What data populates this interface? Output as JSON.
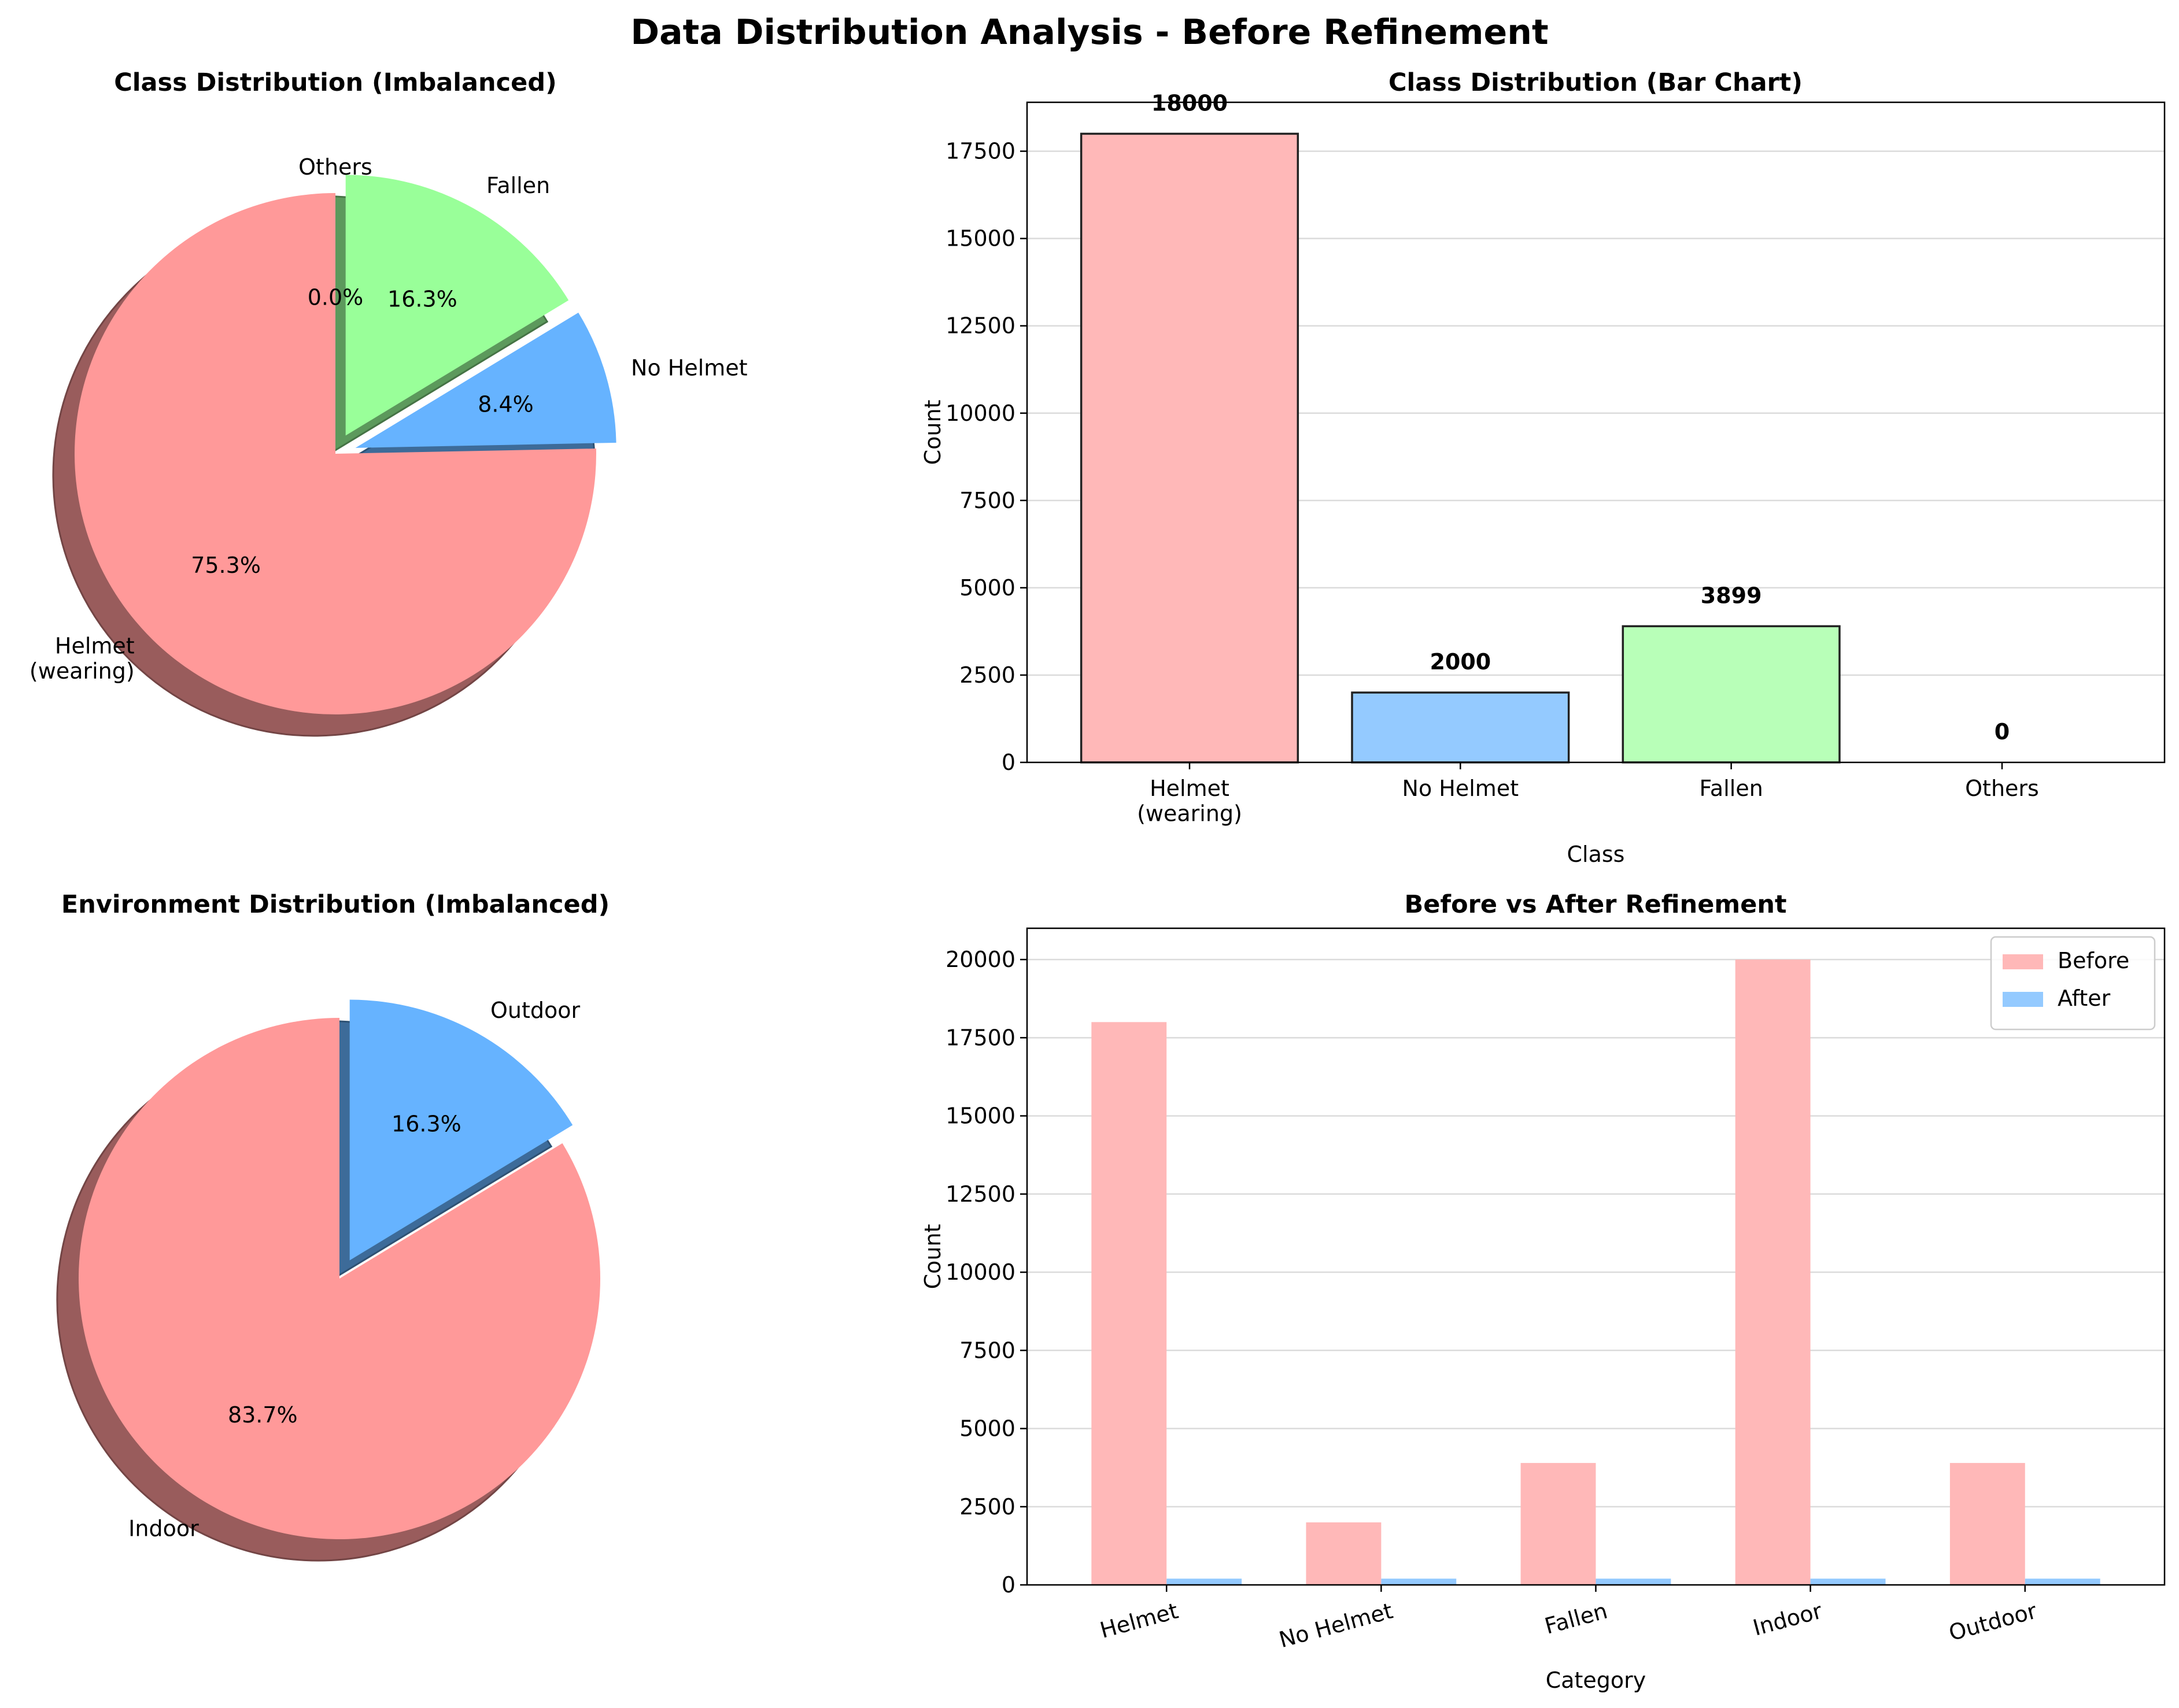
{
  "suptitle": "Data Distribution Analysis - Before Refinement",
  "colors": {
    "helmet": "#ff9999",
    "no_helmet": "#66b3ff",
    "fallen": "#99ff99",
    "others": "#ffcc99",
    "before": "#ff9999",
    "after": "#66b3ff"
  },
  "chart_data": [
    {
      "type": "pie",
      "title": "Class Distribution (Imbalanced)",
      "labels": [
        "Helmet\n(wearing)",
        "No Helmet",
        "Fallen",
        "Others"
      ],
      "values": [
        18000,
        2000,
        3899,
        0
      ],
      "pct_labels": [
        "75.3%",
        "8.4%",
        "16.3%",
        "0.0%"
      ],
      "start_angle_deg": 90,
      "exploded": [
        "No Helmet",
        "Fallen"
      ],
      "shadow": true
    },
    {
      "type": "bar",
      "title": "Class Distribution (Bar Chart)",
      "categories": [
        "Helmet\n(wearing)",
        "No Helmet",
        "Fallen",
        "Others"
      ],
      "values": [
        18000,
        2000,
        3899,
        0
      ],
      "value_labels": [
        "18000",
        "2000",
        "3899",
        "0"
      ],
      "xlabel": "Class",
      "ylabel": "Count",
      "ylim": [
        0,
        18900
      ],
      "yticks": [
        0,
        2500,
        5000,
        7500,
        10000,
        12500,
        15000,
        17500
      ],
      "grid": "y"
    },
    {
      "type": "pie",
      "title": "Environment Distribution (Imbalanced)",
      "labels": [
        "Indoor",
        "Outdoor"
      ],
      "values": [
        20000,
        3899
      ],
      "pct_labels": [
        "83.7%",
        "16.3%"
      ],
      "start_angle_deg": 90,
      "exploded": [
        "Outdoor"
      ],
      "shadow": true
    },
    {
      "type": "bar",
      "title": "Before vs After Refinement",
      "categories": [
        "Helmet",
        "No Helmet",
        "Fallen",
        "Indoor",
        "Outdoor"
      ],
      "series": [
        {
          "name": "Before",
          "values": [
            18000,
            2000,
            3899,
            20000,
            3899
          ]
        },
        {
          "name": "After",
          "values": [
            200,
            200,
            200,
            200,
            200
          ]
        }
      ],
      "xlabel": "Category",
      "ylabel": "Count",
      "ylim": [
        0,
        21000
      ],
      "yticks": [
        0,
        2500,
        5000,
        7500,
        10000,
        12500,
        15000,
        17500,
        20000
      ],
      "grid": "y",
      "legend": "top-right",
      "xtick_rotation_deg": -15
    }
  ]
}
